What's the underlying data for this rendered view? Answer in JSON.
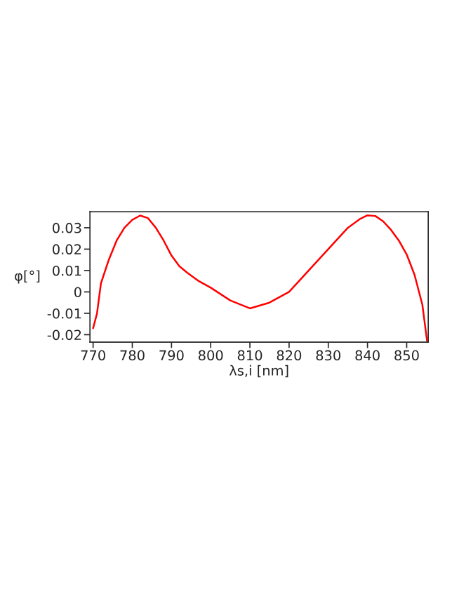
{
  "chart_data": {
    "type": "line",
    "xlabel": "λs,i [nm]",
    "ylabel": "φ[°]",
    "xlim": [
      769.2,
      855.5
    ],
    "xticks": [
      770,
      780,
      790,
      800,
      810,
      820,
      830,
      840,
      850
    ],
    "ylim": [
      -0.0235,
      0.0375
    ],
    "yticks": [
      -0.02,
      -0.01,
      0,
      0.01,
      0.02,
      0.03
    ],
    "grid": false,
    "series": [
      {
        "color": "#ff0000",
        "x": [
          770,
          771,
          772,
          774,
          776,
          778,
          780,
          782,
          784,
          786,
          788,
          790,
          792,
          794,
          797,
          800,
          805,
          810,
          815,
          820,
          825,
          830,
          835,
          838,
          840,
          842,
          844,
          846,
          848,
          850,
          852,
          854,
          855.2
        ],
        "values": [
          -0.017,
          -0.01,
          0.004,
          0.015,
          0.024,
          0.03,
          0.0337,
          0.0357,
          0.0345,
          0.03,
          0.024,
          0.017,
          0.012,
          0.009,
          0.005,
          0.002,
          -0.004,
          -0.0077,
          -0.005,
          0.0,
          0.01,
          0.02,
          0.03,
          0.034,
          0.0358,
          0.0355,
          0.033,
          0.029,
          0.024,
          0.0175,
          0.008,
          -0.006,
          -0.023
        ]
      }
    ]
  }
}
